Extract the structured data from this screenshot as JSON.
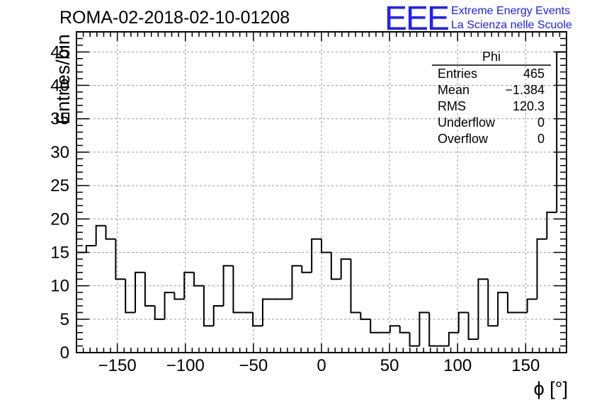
{
  "header": {
    "title": "ROMA-02-2018-02-10-01208"
  },
  "logo": {
    "mark": "EEE",
    "line1": "Extreme Energy Events",
    "line2": "La Scienza nelle Scuole",
    "color": "#1f20ff"
  },
  "stats_box": {
    "title": "Phi",
    "rows": [
      {
        "label": "Entries",
        "value": "465"
      },
      {
        "label": "Mean",
        "value": "−1.384"
      },
      {
        "label": "RMS",
        "value": "120.3"
      },
      {
        "label": "Underflow",
        "value": "0"
      },
      {
        "label": "Overflow",
        "value": "0"
      }
    ]
  },
  "chart_data": {
    "type": "bar",
    "title": "ROMA-02-2018-02-10-01208",
    "xlabel": "ϕ [°]",
    "ylabel": "Entries/bin",
    "xlim": [
      -180,
      180
    ],
    "ylim": [
      0,
      48
    ],
    "bin_width": 7.2,
    "bin_edges_start": -180,
    "values": [
      15,
      16,
      19,
      17,
      11,
      6,
      12,
      7,
      5,
      9,
      8,
      12,
      10,
      4,
      7,
      13,
      6,
      6,
      4,
      8,
      8,
      8,
      13,
      12,
      17,
      15,
      11,
      14,
      6,
      5,
      3,
      3,
      4,
      3,
      1,
      6,
      1,
      1,
      3,
      6,
      2,
      11,
      4,
      9,
      6,
      6,
      8,
      17,
      21,
      45
    ],
    "x_ticks": [
      -150,
      -100,
      -50,
      0,
      50,
      100,
      150
    ],
    "x_tick_labels": [
      "−150",
      "−100",
      "−50",
      "0",
      "50",
      "100",
      "150"
    ],
    "y_ticks": [
      0,
      5,
      10,
      15,
      20,
      25,
      30,
      35,
      40,
      45
    ],
    "y_tick_labels": [
      "0",
      "5",
      "10",
      "15",
      "20",
      "25",
      "30",
      "35",
      "40",
      "45"
    ],
    "grid": true,
    "line_color": "#000000",
    "grid_color": "#999999"
  }
}
